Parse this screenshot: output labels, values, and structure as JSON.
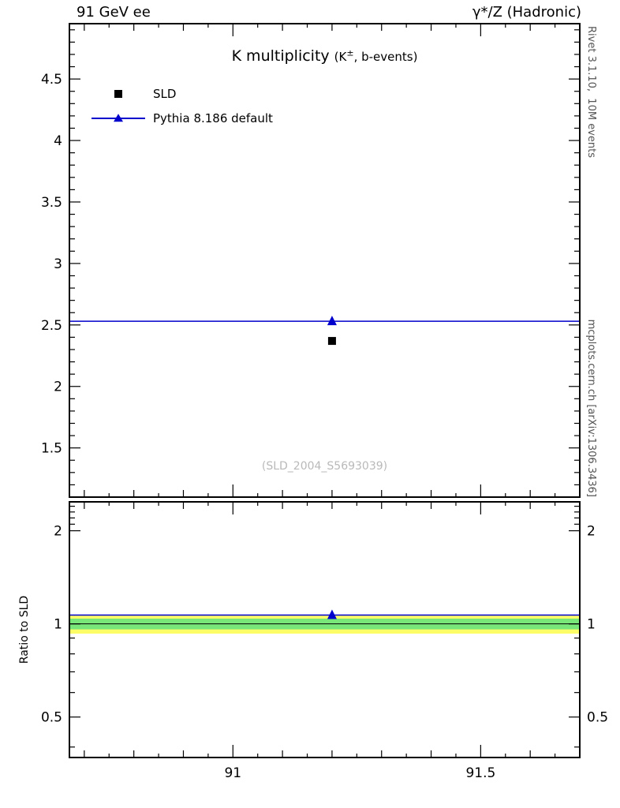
{
  "header": {
    "left": "91 GeV ee",
    "right": "γ*/Z (Hadronic)"
  },
  "side_notes": {
    "top_right": "Rivet 3.1.10,  10M events",
    "bottom_right": "mcplots.cern.ch [arXiv:1306.3436]"
  },
  "chart_data": {
    "type": "scatter",
    "title": "K multiplicity (K±, b-events)",
    "title_parts": {
      "pre": "K multiplicity",
      "p1": "(K",
      "sup": "±",
      "p2": ", b-events)"
    },
    "watermark": "(SLD_2004_S5693039)",
    "x": {
      "lim": [
        90.67,
        91.7
      ],
      "major_ticks": [
        91,
        91.5
      ],
      "major_labels": [
        "91",
        "91.5"
      ],
      "minor_step": 0.1,
      "subminor_step": 0.05
    },
    "main_panel": {
      "ylim": [
        1.1,
        4.95
      ],
      "y_major_ticks": [
        1.5,
        2,
        2.5,
        3,
        3.5,
        4,
        4.5
      ],
      "y_major_labels": [
        "1.5",
        "2",
        "2.5",
        "3",
        "3.5",
        "4",
        "4.5"
      ],
      "y_minor_step": 0.1,
      "series": [
        {
          "name": "SLD",
          "marker": "square",
          "color": "#000000",
          "points": [
            {
              "x": 91.2,
              "y": 2.37
            }
          ]
        },
        {
          "name": "Pythia 8.186 default",
          "marker": "triangle",
          "color": "#0000cc",
          "line_y": 2.53,
          "points": [
            {
              "x": 91.2,
              "y": 2.53
            }
          ]
        }
      ]
    },
    "ratio_panel": {
      "ylabel": "Ratio to SLD",
      "yscale": "log",
      "ylim": [
        0.37,
        2.48
      ],
      "y_major_ticks": [
        0.5,
        1,
        2
      ],
      "y_major_labels": [
        "0.5",
        "1",
        "2"
      ],
      "y_minor_ticks": [
        0.4,
        0.6,
        0.7,
        0.8,
        0.9,
        2.1,
        2.2,
        2.3,
        2.4
      ],
      "reference_line": {
        "y": 1.0,
        "color": "#000000"
      },
      "bands": [
        {
          "name": "outer-uncertainty-band",
          "color": "#fdfd68",
          "lo": 0.93,
          "hi": 1.07
        },
        {
          "name": "inner-uncertainty-band",
          "color": "#79e67a",
          "lo": 0.96,
          "hi": 1.04
        }
      ],
      "series": [
        {
          "name": "Pythia 8.186 default",
          "marker": "triangle",
          "color": "#0000cc",
          "line_y": 1.068,
          "points": [
            {
              "x": 91.2,
              "y": 1.068
            }
          ]
        }
      ]
    },
    "legend": [
      {
        "label": "SLD",
        "marker": "square",
        "color": "#000000"
      },
      {
        "label": "Pythia 8.186 default",
        "marker": "line-triangle",
        "color": "#0000cc"
      }
    ]
  }
}
